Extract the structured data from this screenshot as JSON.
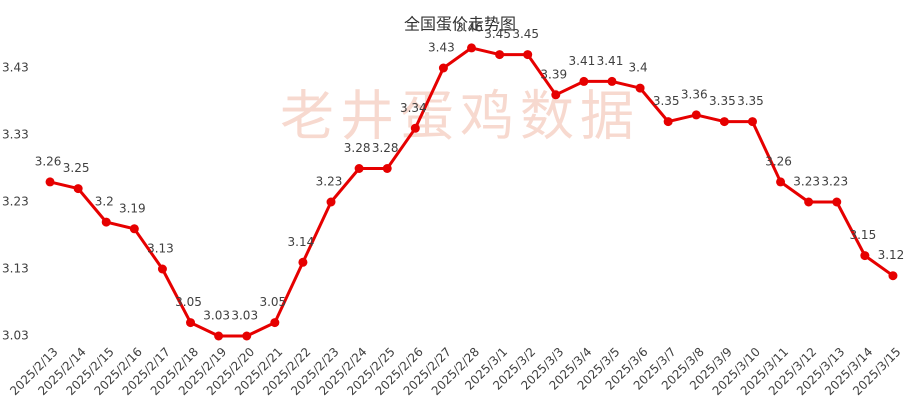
{
  "chart_data": {
    "type": "line",
    "title": "全国蛋价走势图",
    "watermark": "老井蛋鸡数据",
    "categories": [
      "2025/2/13",
      "2025/2/14",
      "2025/2/15",
      "2025/2/16",
      "2025/2/17",
      "2025/2/18",
      "2025/2/19",
      "2025/2/20",
      "2025/2/21",
      "2025/2/22",
      "2025/2/23",
      "2025/2/24",
      "2025/2/25",
      "2025/2/26",
      "2025/2/27",
      "2025/2/28",
      "2025/3/1",
      "2025/3/2",
      "2025/3/3",
      "2025/3/4",
      "2025/3/5",
      "2025/3/6",
      "2025/3/7",
      "2025/3/8",
      "2025/3/9",
      "2025/3/10",
      "2025/3/11",
      "2025/3/12",
      "2025/3/13",
      "2025/3/14",
      "2025/3/15"
    ],
    "values": [
      3.26,
      3.25,
      3.2,
      3.19,
      3.13,
      3.05,
      3.03,
      3.03,
      3.05,
      3.14,
      3.23,
      3.28,
      3.28,
      3.34,
      3.43,
      3.46,
      3.45,
      3.45,
      3.39,
      3.41,
      3.41,
      3.4,
      3.35,
      3.36,
      3.35,
      3.35,
      3.26,
      3.23,
      3.23,
      3.15,
      3.12
    ],
    "color": "#e60000",
    "ylim": [
      3.03,
      3.48
    ],
    "yticks": [
      3.03,
      3.13,
      3.23,
      3.33,
      3.43
    ],
    "grid": false
  }
}
